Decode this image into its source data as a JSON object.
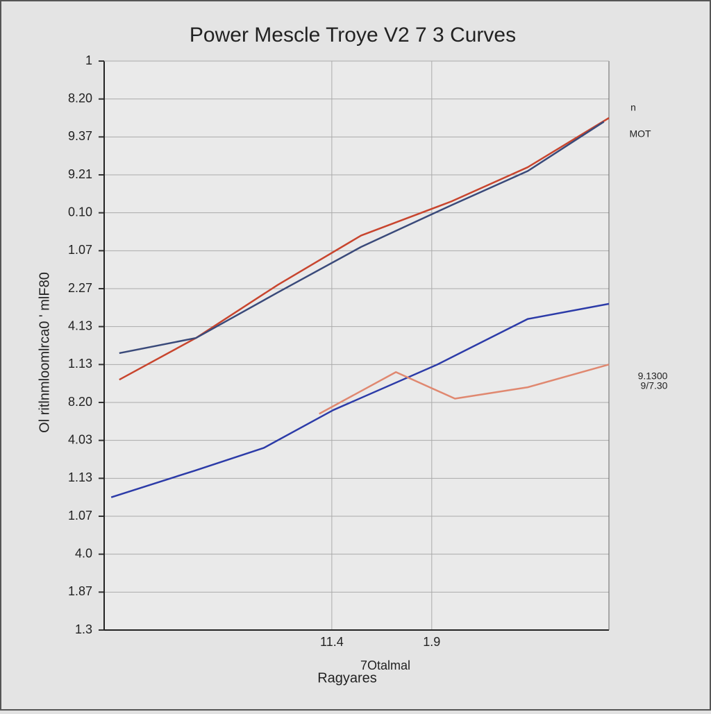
{
  "chart_data": {
    "type": "line",
    "title": "Power Mescle Troye V2 7 3 Curves",
    "ylabel": "Ol ritlnmloomlrca0 ' mlF80",
    "xlabel": "Ragyares",
    "annotations": [
      "7Otalmal"
    ],
    "xlim": [
      0,
      100
    ],
    "ylim": [
      0,
      15
    ],
    "xticks": [
      {
        "value": 45.1,
        "label": "11.4"
      },
      {
        "value": 64.9,
        "label": "1.9"
      }
    ],
    "yticks": [
      {
        "value": 0,
        "label": "1.3"
      },
      {
        "value": 1,
        "label": "1.87"
      },
      {
        "value": 2,
        "label": "4.0"
      },
      {
        "value": 3,
        "label": "1.07"
      },
      {
        "value": 4,
        "label": "1.13"
      },
      {
        "value": 5,
        "label": "4.03"
      },
      {
        "value": 6,
        "label": "8.20"
      },
      {
        "value": 7,
        "label": "1.13"
      },
      {
        "value": 8,
        "label": "4.13"
      },
      {
        "value": 9,
        "label": "2.27"
      },
      {
        "value": 10,
        "label": "1.07"
      },
      {
        "value": 11,
        "label": "0.10"
      },
      {
        "value": 12,
        "label": "9.21"
      },
      {
        "value": 13,
        "label": "9.37"
      },
      {
        "value": 14,
        "label": "8.20"
      },
      {
        "value": 15,
        "label": "1"
      }
    ],
    "grid": true,
    "series": [
      {
        "name": "n",
        "color": "#c8452e",
        "x": [
          3,
          18.2,
          34.4,
          50.9,
          68.8,
          83.9,
          100
        ],
        "values": [
          6.6,
          7.7,
          9.1,
          10.4,
          11.3,
          12.2,
          13.5
        ]
      },
      {
        "name": "MOT",
        "color": "#3a4a7a",
        "x": [
          3,
          18.2,
          34.4,
          50.9,
          68.8,
          83.9,
          99
        ],
        "values": [
          7.3,
          7.7,
          8.9,
          10.1,
          11.2,
          12.1,
          13.4
        ]
      },
      {
        "name": "9.1300",
        "color": "#2c3ba8",
        "x": [
          1.4,
          17.9,
          31.6,
          45.4,
          66,
          83.9,
          100
        ],
        "values": [
          3.5,
          4.2,
          4.8,
          5.8,
          7.0,
          8.2,
          8.6
        ]
      },
      {
        "name": "9/7.30",
        "color": "#e08870",
        "x": [
          42.6,
          57.8,
          69.5,
          83.9,
          100
        ],
        "values": [
          5.7,
          6.8,
          6.1,
          6.4,
          7.0
        ]
      }
    ]
  }
}
